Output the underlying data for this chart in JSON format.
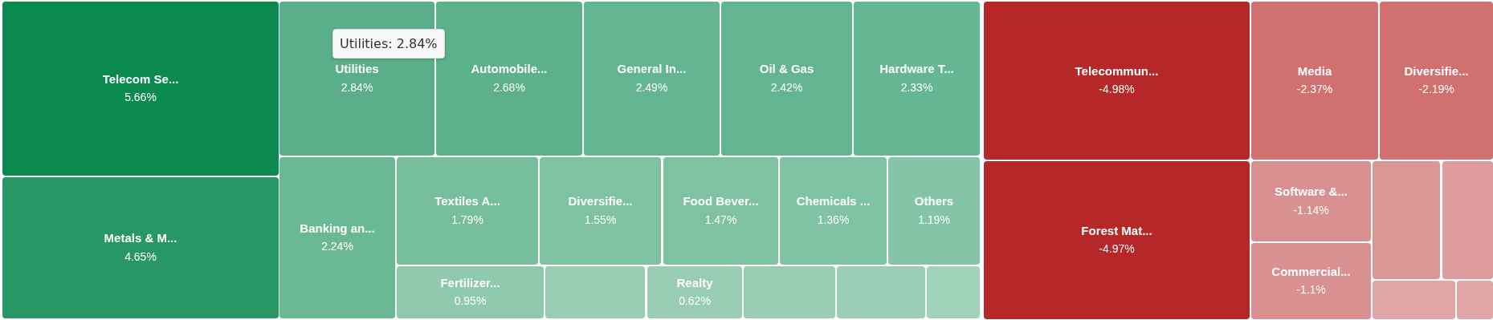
{
  "chart_data": {
    "type": "other",
    "categories": [
      "Telecom Se...",
      "Metals & M...",
      "Utilities",
      "Automobile...",
      "General In...",
      "Oil & Gas",
      "Hardware T...",
      "Banking an...",
      "Textiles A...",
      "Diversifie...",
      "Food Bever...",
      "Chemicals ...",
      "Others",
      "Fertilizer...",
      null,
      "Realty",
      null,
      null,
      null,
      "Telecommun...",
      "Forest Mat...",
      "Media",
      "Diversifie...",
      "Software &...",
      "Commercial...",
      null,
      null,
      null,
      null
    ],
    "values": [
      5.66,
      4.65,
      2.84,
      2.68,
      2.49,
      2.42,
      2.33,
      2.24,
      1.79,
      1.55,
      1.47,
      1.36,
      1.19,
      0.95,
      null,
      0.62,
      null,
      null,
      null,
      -4.98,
      -4.97,
      -2.37,
      -2.19,
      -1.14,
      -1.1,
      null,
      null,
      null,
      null
    ],
    "value_labels": [
      "5.66%",
      "4.65%",
      "2.84%",
      "2.68%",
      "2.49%",
      "2.42%",
      "2.33%",
      "2.24%",
      "1.79%",
      "1.55%",
      "1.47%",
      "1.36%",
      "1.19%",
      "0.95%",
      null,
      "0.62%",
      null,
      null,
      null,
      "-4.98%",
      "-4.97%",
      "-2.37%",
      "-2.19%",
      "-1.14%",
      "-1.1%",
      null,
      null,
      null,
      null
    ],
    "colors": [
      "#0a8a4e",
      "#279766",
      "#5aaf8a",
      "#5cb08a",
      "#63b591",
      "#63b591",
      "#65b693",
      "#6bb894",
      "#77be9c",
      "#7ec2a2",
      "#7ec2a2",
      "#80c3a4",
      "#85c5a7",
      "#8fcaaf",
      "#98cdb4",
      "#98cdb4",
      "#98cdb4",
      "#9bceb6",
      "#a1d2ba",
      "#b52728",
      "#b52728",
      "#d07070",
      "#d07070",
      "#d89090",
      "#d89090",
      "#db9595",
      "#de9b9b",
      "#e0a5a5",
      "#e0a5a5"
    ],
    "annotations": [
      "Utilities: 2.84%"
    ]
  }
}
